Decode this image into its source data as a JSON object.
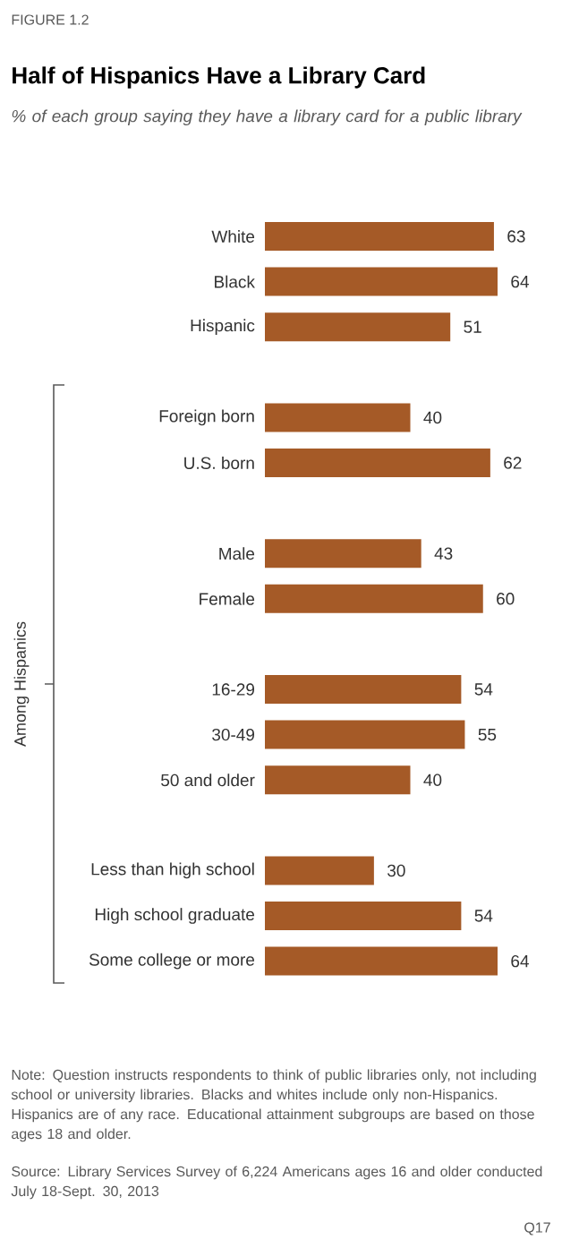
{
  "chart_data": {
    "type": "bar",
    "orientation": "horizontal",
    "title": "Half of Hispanics Have a Library Card",
    "subtitle": "% of each group saying they have a library card for a public library",
    "categories": [
      "White",
      "Black",
      "Hispanic",
      null,
      "Foreign born",
      "U.S. born",
      null,
      "Male",
      "Female",
      null,
      "16-29",
      "30-49",
      "50 and older",
      null,
      "Less than high school",
      "High school graduate",
      "Some college or more"
    ],
    "values": [
      63,
      64,
      51,
      null,
      40,
      62,
      null,
      43,
      60,
      null,
      54,
      55,
      40,
      null,
      30,
      54,
      64
    ],
    "color": "#a55a27",
    "data_labels": true,
    "tick_labels": "y",
    "annotations": [
      "FIGURE 1.2",
      "Among Hispanics",
      "Note: Question instructs respondents to think of public libraries only, not including school or university libraries. Blacks and whites include only non-Hispanics. Hispanics are of any race. Educational attainment subgroups are based on those ages 18 and older.",
      "Source: Library Services Survey of 6,224 Americans ages 16 and older conducted July 18-Sept. 30, 2013",
      "Q17"
    ]
  }
}
